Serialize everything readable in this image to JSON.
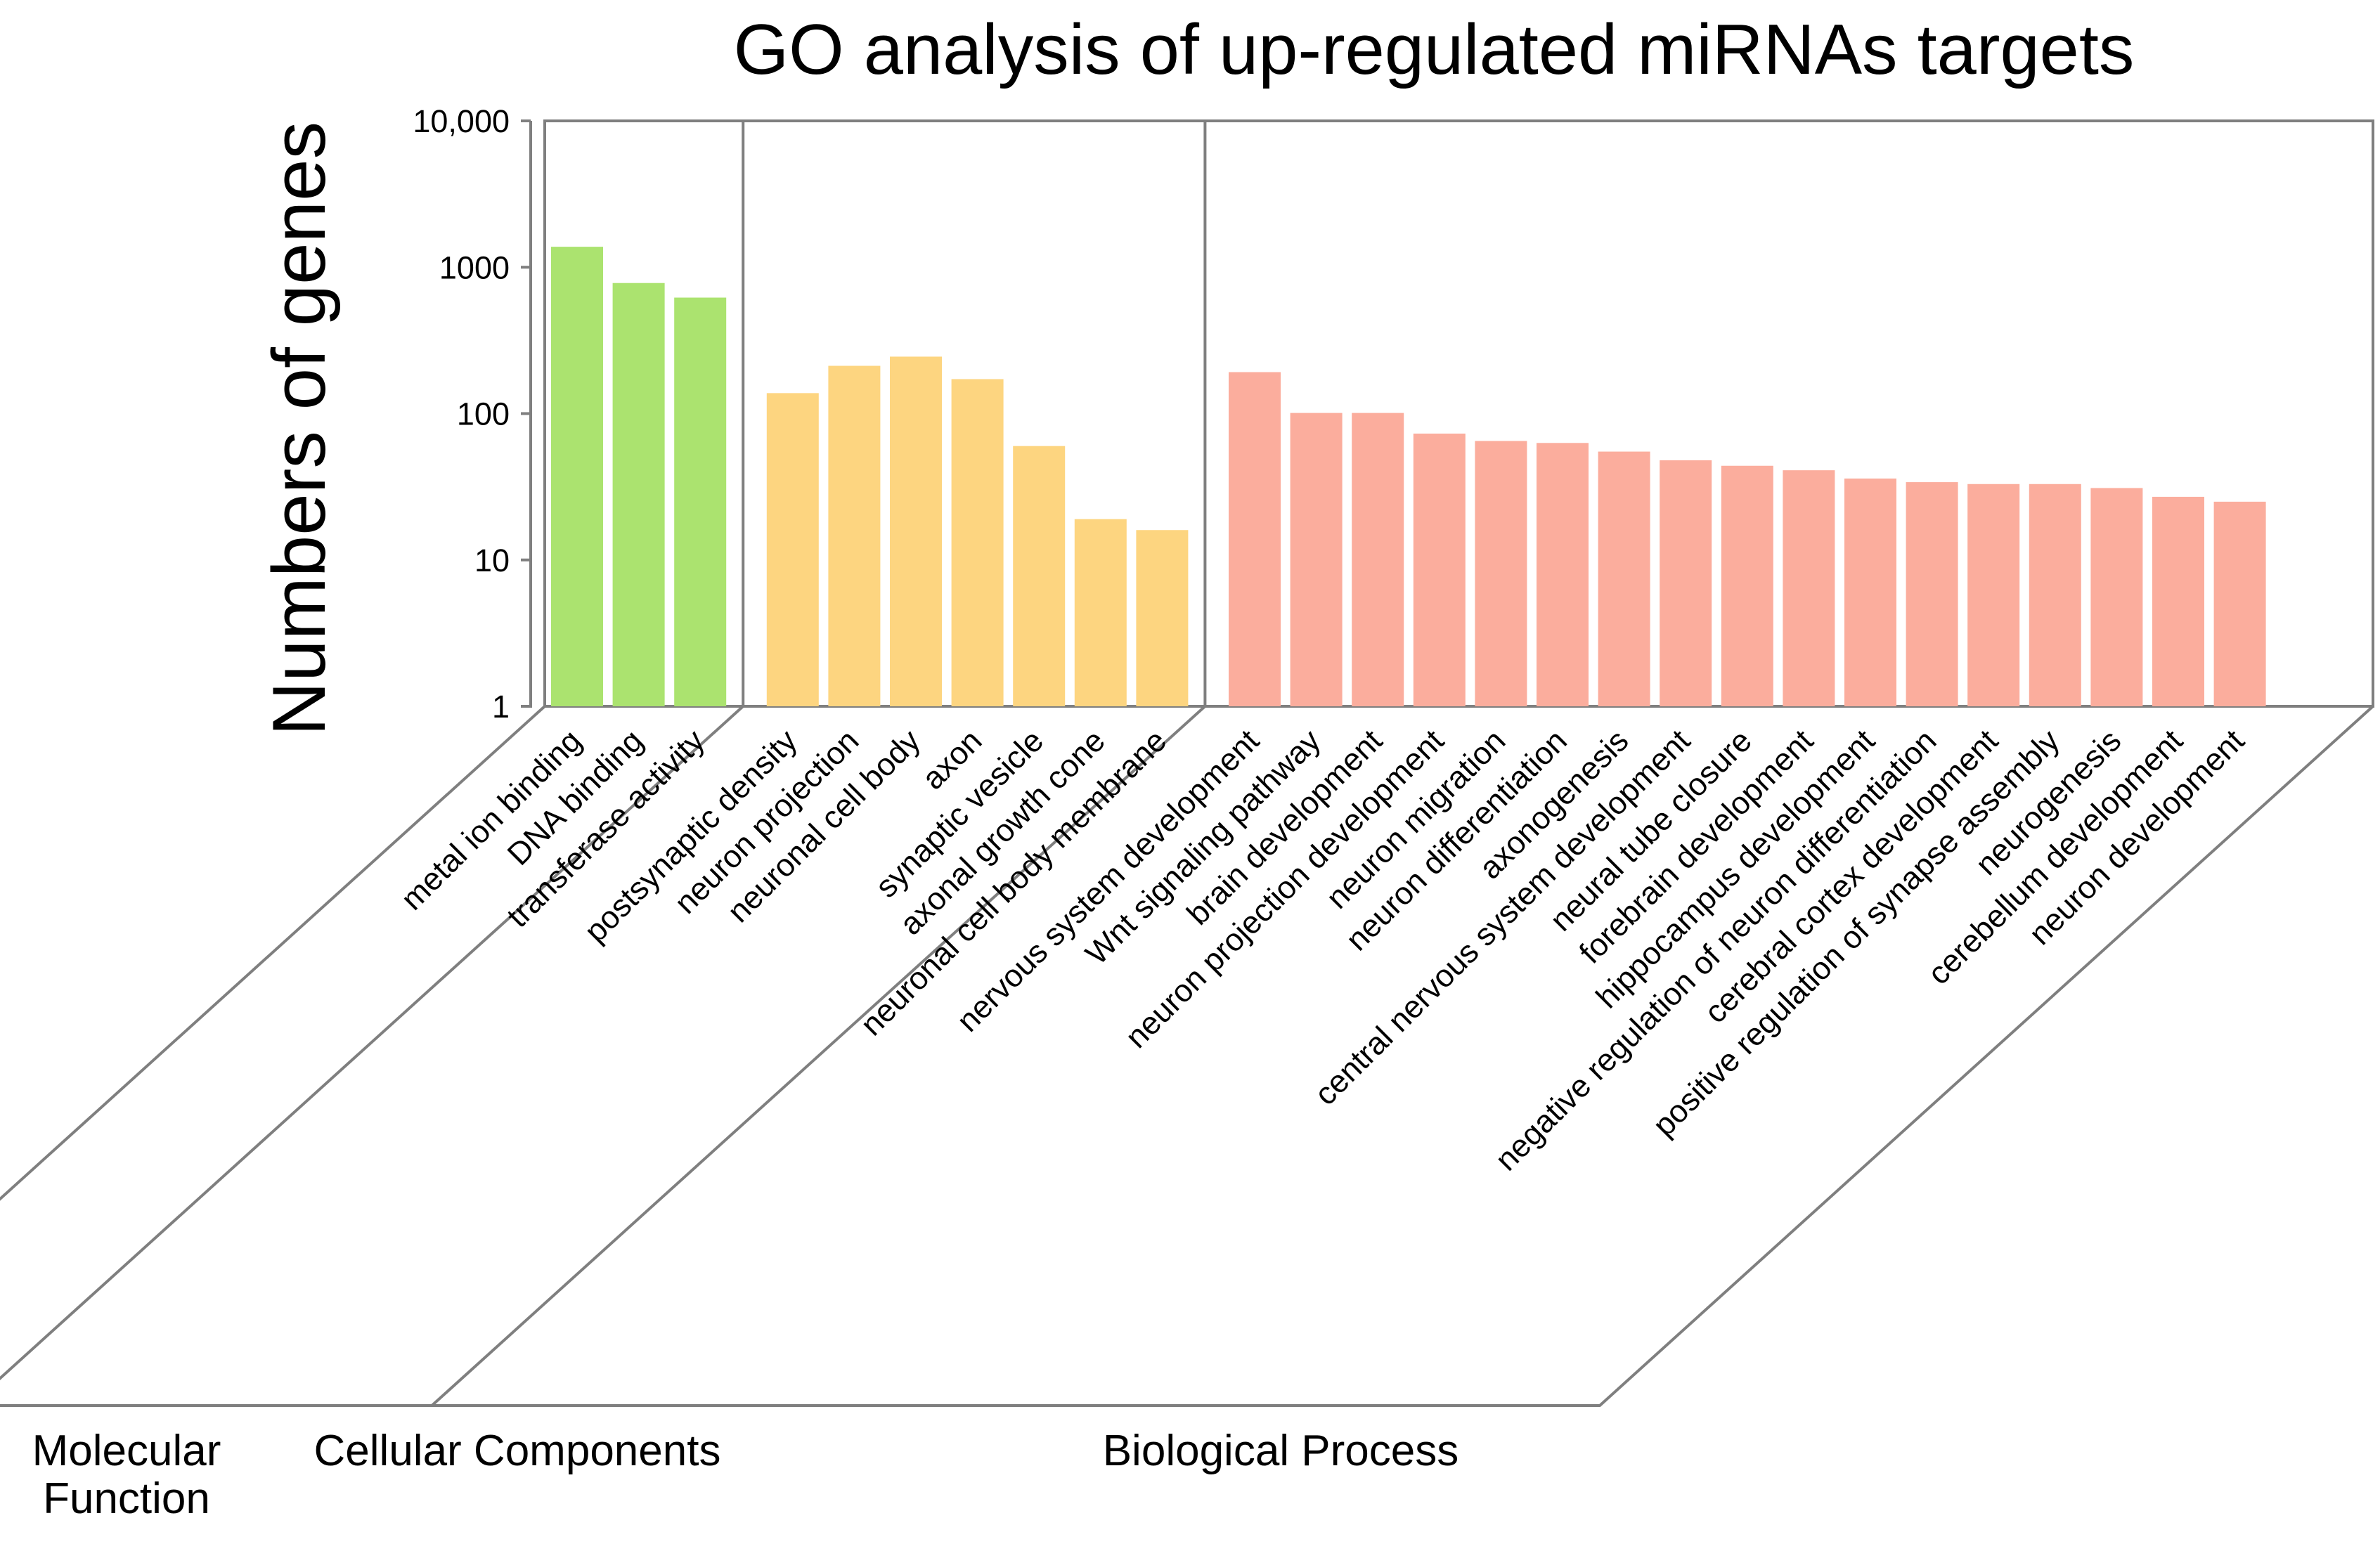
{
  "chart_data": {
    "type": "bar",
    "title": "GO analysis of up-regulated miRNAs targets",
    "ylabel": "Numbers of genes",
    "xlabel": "",
    "yscale": "log",
    "ylim": [
      1,
      10000
    ],
    "yticks": [
      {
        "value": 1,
        "label": "1"
      },
      {
        "value": 10,
        "label": "10"
      },
      {
        "value": 100,
        "label": "100"
      },
      {
        "value": 1000,
        "label": "1000"
      },
      {
        "value": 10000,
        "label": "10,000"
      }
    ],
    "groups": [
      {
        "name": "Molecular Function",
        "label_lines": [
          "Molecular",
          "Function"
        ],
        "color": "#abe36f",
        "categories": [
          "metal ion binding",
          "DNA binding",
          "transferase activity"
        ],
        "values": [
          1380,
          780,
          620
        ]
      },
      {
        "name": "Cellular Components",
        "label_lines": [
          "Cellular Components"
        ],
        "color": "#fdd580",
        "categories": [
          "postsynaptic density",
          "neuron projection",
          "neuronal cell body",
          "axon",
          "synaptic vesicle",
          "axonal growth cone",
          "neuronal cell body membrane"
        ],
        "values": [
          138,
          212,
          245,
          172,
          60,
          19,
          16
        ]
      },
      {
        "name": "Biological Process",
        "label_lines": [
          "Biological Process"
        ],
        "color": "#fbad9d",
        "categories": [
          "nervous system development",
          "Wnt signaling pathway",
          "brain development",
          "neuron projection development",
          "neuron migration",
          "neuron differentiation",
          "axonogenesis",
          "central nervous system development",
          "neural tube closure",
          "forebrain development",
          "hippocampus development",
          "negative regulation of neuron differentiation",
          "cerebral cortex development",
          "positive regulation of synapse assembly",
          "neurogenesis",
          "cerebellum development",
          "neuron development"
        ],
        "values": [
          192,
          101,
          101,
          73,
          65,
          63,
          55,
          48,
          44,
          41,
          36,
          34,
          33,
          33,
          31,
          27,
          25
        ]
      }
    ]
  }
}
